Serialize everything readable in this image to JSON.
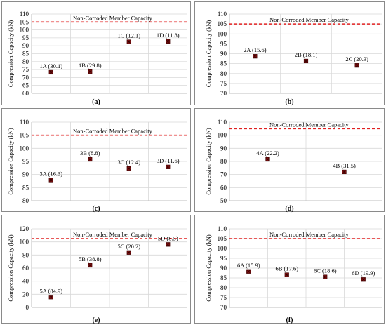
{
  "colors": {
    "marker": "#7a0f0f",
    "marker_edge": "#3a0000",
    "reference_line": "#e02020",
    "grid": "#d9d9d9",
    "axis": "#bfbfbf",
    "panel_border": "#8a8a8a"
  },
  "chart_data": [
    {
      "type": "scatter",
      "panel_caption": "(a)",
      "ylabel": "Compression Capacity (kN)",
      "ylim": [
        60,
        110
      ],
      "yticks": [
        60,
        65,
        70,
        75,
        80,
        85,
        90,
        95,
        100,
        105,
        110
      ],
      "reference": {
        "value": 105,
        "label": "Non-Corroded Member Capacity"
      },
      "points": [
        {
          "label": "1A (30.1)",
          "y": 73.3
        },
        {
          "label": "1B (29.8)",
          "y": 73.7
        },
        {
          "label": "1C (12.1)",
          "y": 92.5
        },
        {
          "label": "1D (11.8)",
          "y": 92.8
        }
      ]
    },
    {
      "type": "scatter",
      "panel_caption": "(b)",
      "ylabel": "Compression Capacity (kN)",
      "ylim": [
        70,
        110
      ],
      "yticks": [
        70,
        75,
        80,
        85,
        90,
        95,
        100,
        105,
        110
      ],
      "reference": {
        "value": 105,
        "label": "Non-Corroded Member Capacity"
      },
      "points": [
        {
          "label": "2A (15.6)",
          "y": 88.7
        },
        {
          "label": "2B (18.1)",
          "y": 86.3
        },
        {
          "label": "2C (20.3)",
          "y": 84.1
        }
      ]
    },
    {
      "type": "scatter",
      "panel_caption": "(c)",
      "ylabel": "Compression Capacity (kN)",
      "ylim": [
        80,
        110
      ],
      "yticks": [
        80,
        85,
        90,
        95,
        100,
        105,
        110
      ],
      "reference": {
        "value": 105,
        "label": "Non-Corroded Member Capacity"
      },
      "points": [
        {
          "label": "3A (16.3)",
          "y": 87.9
        },
        {
          "label": "3B (8.8)",
          "y": 95.8
        },
        {
          "label": "3C (12.4)",
          "y": 92.3
        },
        {
          "label": "3D (11.6)",
          "y": 92.9
        }
      ]
    },
    {
      "type": "scatter",
      "panel_caption": "(d)",
      "ylabel": "Compression Capacity (kN)",
      "ylim": [
        50,
        110
      ],
      "yticks": [
        50,
        60,
        70,
        80,
        90,
        100,
        110
      ],
      "reference": {
        "value": 105,
        "label": "Non-Corroded Member Capacity"
      },
      "points": [
        {
          "label": "4A (22.2)",
          "y": 81.6
        },
        {
          "label": "4B (31.5)",
          "y": 72.0
        }
      ]
    },
    {
      "type": "scatter",
      "panel_caption": "(e)",
      "ylabel": "Compression Capacity (kN)",
      "ylim": [
        0,
        120
      ],
      "yticks": [
        0,
        20,
        40,
        60,
        80,
        100,
        120
      ],
      "reference": {
        "value": 105,
        "label": "Non-Corroded Member Capacity"
      },
      "points": [
        {
          "label": "5A (84.9)",
          "y": 15.8
        },
        {
          "label": "5B (38.8)",
          "y": 64.3
        },
        {
          "label": "5C (20.2)",
          "y": 83.8
        },
        {
          "label": "5D (8.5)",
          "y": 96.1
        }
      ]
    },
    {
      "type": "scatter",
      "panel_caption": "(f)",
      "ylabel": "Compression Capacity (kN)",
      "ylim": [
        70,
        110
      ],
      "yticks": [
        70,
        75,
        80,
        85,
        90,
        95,
        100,
        105,
        110
      ],
      "reference": {
        "value": 105,
        "label": "Non-Corroded Member Capacity"
      },
      "points": [
        {
          "label": "6A (15.9)",
          "y": 88.3
        },
        {
          "label": "6B (17.6)",
          "y": 86.6
        },
        {
          "label": "6C (18.6)",
          "y": 85.5
        },
        {
          "label": "6D (19.9)",
          "y": 84.2
        }
      ]
    }
  ]
}
